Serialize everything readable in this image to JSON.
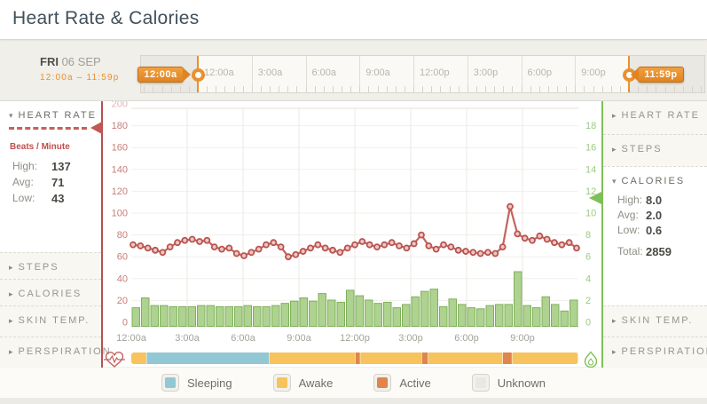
{
  "header": {
    "title": "Heart Rate & Calories"
  },
  "icons": {
    "chevron_down": "▾",
    "chevron_right": "▸",
    "heart_pulse": "heart-pulse-icon",
    "flame": "flame-icon"
  },
  "date_panel": {
    "day": "FRI",
    "date": "06 SEP",
    "range": "12:00a – 11:59p"
  },
  "time_slider": {
    "start_handle": "12:00a",
    "end_handle": "11:59p",
    "tick_labels": [
      "12:00a",
      "3:00a",
      "6:00a",
      "9:00a",
      "12:00p",
      "3:00p",
      "6:00p",
      "9:00p",
      "12:00a"
    ]
  },
  "left_sidebar": {
    "heart_rate": {
      "title": "HEART RATE",
      "unit": "Beats / Minute",
      "stats": [
        {
          "label": "High:",
          "value": "137"
        },
        {
          "label": "Avg:",
          "value": "71"
        },
        {
          "label": "Low:",
          "value": "43"
        }
      ]
    },
    "collapsed_items": [
      "STEPS",
      "CALORIES",
      "SKIN TEMP.",
      "PERSPIRATION"
    ]
  },
  "right_sidebar": {
    "collapsed_top": [
      "HEART RATE",
      "STEPS"
    ],
    "calories": {
      "title": "CALORIES",
      "stats": [
        {
          "label": "High:",
          "value": "8.0"
        },
        {
          "label": "Avg:",
          "value": "2.0"
        },
        {
          "label": "Low:",
          "value": "0.6"
        }
      ],
      "total_label": "Total:",
      "total_value": "2859"
    },
    "collapsed_bottom": [
      "SKIN TEMP.",
      "PERSPIRATION"
    ]
  },
  "chart_data": {
    "type": "line+bar",
    "title": "Heart Rate & Calories — FRI 06 SEP",
    "x_labels": [
      "12:00a",
      "3:00a",
      "6:00a",
      "9:00a",
      "12:00p",
      "3:00p",
      "6:00p",
      "9:00p"
    ],
    "left_axis": {
      "label": "Beats / Minute",
      "ticks": [
        200,
        180,
        160,
        140,
        120,
        100,
        80,
        60,
        40,
        20,
        0
      ],
      "range": [
        0,
        200
      ],
      "color": "#c87e79"
    },
    "right_axis": {
      "label": "Calories",
      "ticks": [
        18,
        16,
        14,
        12,
        10,
        8,
        6,
        4,
        2,
        0
      ],
      "range": [
        0,
        20
      ],
      "color": "#9ccb7e"
    },
    "grid": true,
    "series": [
      {
        "name": "heart-rate",
        "type": "line",
        "color": "#c4635e",
        "marker_fill": "#eec6c4",
        "values": [
          71,
          70,
          68,
          66,
          64,
          69,
          73,
          75,
          76,
          74,
          75,
          69,
          67,
          68,
          63,
          61,
          64,
          67,
          71,
          73,
          69,
          60,
          62,
          65,
          68,
          71,
          68,
          66,
          64,
          68,
          71,
          74,
          71,
          69,
          71,
          73,
          70,
          68,
          72,
          80,
          70,
          67,
          71,
          69,
          66,
          65,
          64,
          63,
          64,
          63,
          69,
          106,
          81,
          77,
          75,
          79,
          76,
          73,
          71,
          73,
          68
        ]
      },
      {
        "name": "calories",
        "type": "bar",
        "color": "#aed28f",
        "border": "#7fb05b",
        "values": [
          1.7,
          2.6,
          1.9,
          1.9,
          1.8,
          1.8,
          1.8,
          1.9,
          1.9,
          1.8,
          1.8,
          1.8,
          1.9,
          1.8,
          1.8,
          1.9,
          2.1,
          2.3,
          2.6,
          2.3,
          3.0,
          2.4,
          2.2,
          3.3,
          2.8,
          2.4,
          2.1,
          2.2,
          1.7,
          2.0,
          2.7,
          3.2,
          3.4,
          1.8,
          2.5,
          2.0,
          1.7,
          1.6,
          1.9,
          2.0,
          2.0,
          5.0,
          1.9,
          1.7,
          2.7,
          2.0,
          1.4,
          2.4
        ]
      }
    ]
  },
  "activity_timeline": {
    "colors": {
      "sleeping": "#92c8d3",
      "awake": "#f6c35c",
      "active": "#e0854b",
      "unknown": "#e9e8e2"
    },
    "segments": [
      {
        "type": "awake",
        "start_h": 0,
        "end_h": 0.83
      },
      {
        "type": "sleeping",
        "start_h": 0.83,
        "end_h": 7.43
      },
      {
        "type": "awake",
        "start_h": 7.43,
        "end_h": 12.03
      },
      {
        "type": "active",
        "start_h": 12.03,
        "end_h": 12.3
      },
      {
        "type": "awake",
        "start_h": 12.3,
        "end_h": 15.6
      },
      {
        "type": "active",
        "start_h": 15.6,
        "end_h": 15.95
      },
      {
        "type": "awake",
        "start_h": 15.95,
        "end_h": 19.95
      },
      {
        "type": "active",
        "start_h": 19.95,
        "end_h": 20.45
      },
      {
        "type": "awake",
        "start_h": 20.45,
        "end_h": 24
      }
    ]
  },
  "legend": {
    "items": [
      {
        "label": "Sleeping",
        "type": "sleeping"
      },
      {
        "label": "Awake",
        "type": "awake"
      },
      {
        "label": "Active",
        "type": "active"
      },
      {
        "label": "Unknown",
        "type": "unknown"
      }
    ]
  }
}
